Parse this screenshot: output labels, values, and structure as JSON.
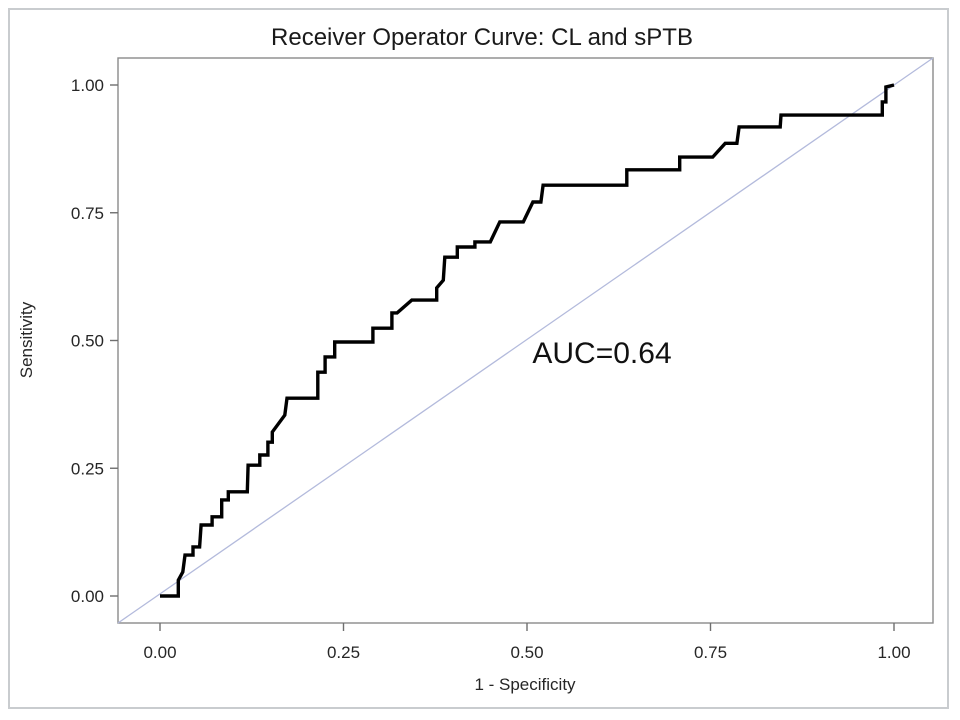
{
  "chart_data": {
    "type": "line",
    "subtype": "roc-step-curve",
    "title": "Receiver Operator Curve: CL and sPTB",
    "xlabel": "1 - Specificity",
    "ylabel": "Sensitivity",
    "xlim": [
      0,
      1
    ],
    "ylim": [
      0,
      1
    ],
    "x_ticks": [
      "0.00",
      "0.25",
      "0.50",
      "0.75",
      "1.00"
    ],
    "y_ticks": [
      "0.00",
      "0.25",
      "0.50",
      "0.75",
      "1.00"
    ],
    "grid": false,
    "legend": "none",
    "auc": 0.64,
    "annotation": {
      "text": "AUC=0.64",
      "x": 0.602,
      "y": 0.478
    },
    "series": [
      {
        "name": "ROC curve: CL and sPTB",
        "type": "step",
        "color": "#000000",
        "points": [
          [
            0.0,
            0.0
          ],
          [
            0.025,
            0.0
          ],
          [
            0.025,
            0.031
          ],
          [
            0.031,
            0.047
          ],
          [
            0.034,
            0.08
          ],
          [
            0.045,
            0.08
          ],
          [
            0.045,
            0.096
          ],
          [
            0.054,
            0.096
          ],
          [
            0.056,
            0.139
          ],
          [
            0.071,
            0.139
          ],
          [
            0.071,
            0.155
          ],
          [
            0.084,
            0.155
          ],
          [
            0.084,
            0.188
          ],
          [
            0.093,
            0.188
          ],
          [
            0.093,
            0.204
          ],
          [
            0.119,
            0.204
          ],
          [
            0.12,
            0.256
          ],
          [
            0.136,
            0.256
          ],
          [
            0.136,
            0.276
          ],
          [
            0.147,
            0.276
          ],
          [
            0.147,
            0.301
          ],
          [
            0.153,
            0.301
          ],
          [
            0.153,
            0.321
          ],
          [
            0.17,
            0.354
          ],
          [
            0.173,
            0.387
          ],
          [
            0.215,
            0.387
          ],
          [
            0.215,
            0.438
          ],
          [
            0.225,
            0.438
          ],
          [
            0.225,
            0.468
          ],
          [
            0.238,
            0.468
          ],
          [
            0.238,
            0.497
          ],
          [
            0.29,
            0.497
          ],
          [
            0.29,
            0.524
          ],
          [
            0.316,
            0.524
          ],
          [
            0.316,
            0.554
          ],
          [
            0.323,
            0.554
          ],
          [
            0.343,
            0.579
          ],
          [
            0.377,
            0.579
          ],
          [
            0.377,
            0.603
          ],
          [
            0.386,
            0.618
          ],
          [
            0.388,
            0.663
          ],
          [
            0.405,
            0.663
          ],
          [
            0.405,
            0.683
          ],
          [
            0.429,
            0.683
          ],
          [
            0.429,
            0.693
          ],
          [
            0.45,
            0.693
          ],
          [
            0.463,
            0.732
          ],
          [
            0.495,
            0.732
          ],
          [
            0.508,
            0.771
          ],
          [
            0.519,
            0.771
          ],
          [
            0.522,
            0.804
          ],
          [
            0.636,
            0.804
          ],
          [
            0.636,
            0.834
          ],
          [
            0.708,
            0.834
          ],
          [
            0.708,
            0.859
          ],
          [
            0.753,
            0.859
          ],
          [
            0.77,
            0.886
          ],
          [
            0.786,
            0.886
          ],
          [
            0.789,
            0.918
          ],
          [
            0.845,
            0.918
          ],
          [
            0.846,
            0.941
          ],
          [
            0.984,
            0.941
          ],
          [
            0.984,
            0.967
          ],
          [
            0.989,
            0.967
          ],
          [
            0.989,
            0.996
          ],
          [
            1.0,
            1.0
          ]
        ]
      },
      {
        "name": "Chance diagonal reference line",
        "type": "reference-line",
        "color": "#b3badc",
        "points": [
          [
            0,
            0
          ],
          [
            1,
            1
          ]
        ]
      }
    ],
    "colors": {
      "curve": "#000000",
      "diagonal": "#b3badc",
      "plot_border": "#8a8a8a",
      "tick_mark": "#6f6f6f",
      "text": "#262626",
      "background": "#ffffff",
      "figure_border": "#c9cccf"
    }
  }
}
